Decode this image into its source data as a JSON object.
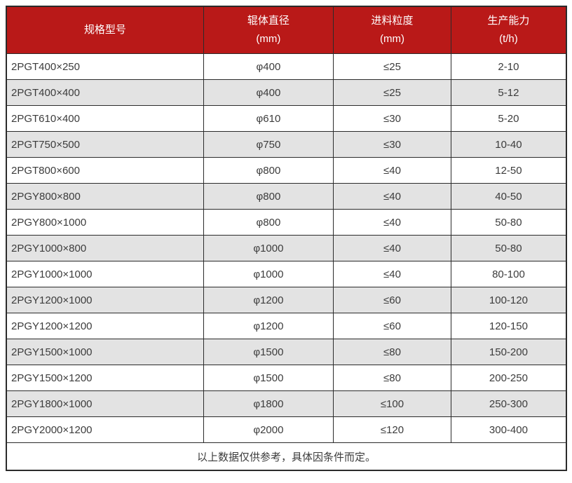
{
  "table": {
    "columns": [
      {
        "label": "规格型号",
        "unit": ""
      },
      {
        "label": "辊体直径",
        "unit": "(mm)"
      },
      {
        "label": "进料粒度",
        "unit": "(mm)"
      },
      {
        "label": "生产能力",
        "unit": "(t/h)"
      }
    ],
    "rows": [
      [
        "2PGT400×250",
        "φ400",
        "≤25",
        "2-10"
      ],
      [
        "2PGT400×400",
        "φ400",
        "≤25",
        "5-12"
      ],
      [
        "2PGT610×400",
        "φ610",
        "≤30",
        "5-20"
      ],
      [
        "2PGT750×500",
        "φ750",
        "≤30",
        "10-40"
      ],
      [
        "2PGT800×600",
        "φ800",
        "≤40",
        "12-50"
      ],
      [
        "2PGY800×800",
        "φ800",
        "≤40",
        "40-50"
      ],
      [
        "2PGY800×1000",
        "φ800",
        "≤40",
        "50-80"
      ],
      [
        "2PGY1000×800",
        "φ1000",
        "≤40",
        "50-80"
      ],
      [
        "2PGY1000×1000",
        "φ1000",
        "≤40",
        "80-100"
      ],
      [
        "2PGY1200×1000",
        "φ1200",
        "≤60",
        "100-120"
      ],
      [
        "2PGY1200×1200",
        "φ1200",
        "≤60",
        "120-150"
      ],
      [
        "2PGY1500×1000",
        "φ1500",
        "≤80",
        "150-200"
      ],
      [
        "2PGY1500×1200",
        "φ1500",
        "≤80",
        "200-250"
      ],
      [
        "2PGY1800×1000",
        "φ1800",
        "≤100",
        "250-300"
      ],
      [
        "2PGY2000×1200",
        "φ2000",
        "≤120",
        "300-400"
      ]
    ],
    "footnote": "以上数据仅供参考，具体因条件而定。"
  },
  "colors": {
    "header_bg": "#B91918",
    "row_alt_bg": "#E3E3E3",
    "border": "#2B2B2B",
    "text": "#3C3C3C",
    "header_text": "#FFFFFF"
  }
}
